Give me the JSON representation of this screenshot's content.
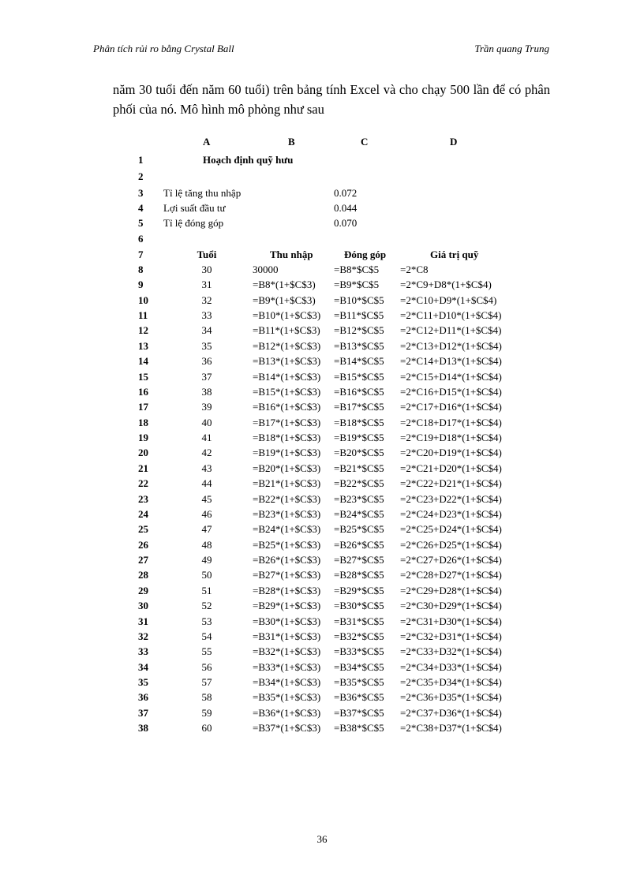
{
  "header": {
    "left": "Phân tích rủi ro bằng Crystal Ball",
    "right": "Trần quang Trung"
  },
  "paragraph": "năm 30 tuổi đến năm 60 tuổi) trên bảng tính Excel và cho chạy 500 lần để có phân phối của nó. Mô hình mô phỏng như sau",
  "sheet": {
    "columns": [
      "A",
      "B",
      "C",
      "D"
    ],
    "title_row": {
      "num": "1",
      "text": "Hoạch định quỹ hưu"
    },
    "blank_rows": [
      "2",
      "6"
    ],
    "params": [
      {
        "num": "3",
        "label": "Tỉ lệ tăng thu nhập",
        "value": "0.072"
      },
      {
        "num": "4",
        "label": "Lợi suất đầu tư",
        "value": "0.044"
      },
      {
        "num": "5",
        "label": "Tỉ lệ đóng góp",
        "value": "0.070"
      }
    ],
    "table_header": {
      "num": "7",
      "cols": [
        "Tuổi",
        "Thu nhập",
        "Đóng góp",
        "Giá trị quỹ"
      ]
    },
    "rows": [
      [
        "8",
        "30",
        "30000",
        "=B8*$C$5",
        "=2*C8"
      ],
      [
        "9",
        "31",
        "=B8*(1+$C$3)",
        "=B9*$C$5",
        "=2*C9+D8*(1+$C$4)"
      ],
      [
        "10",
        "32",
        "=B9*(1+$C$3)",
        "=B10*$C$5",
        "=2*C10+D9*(1+$C$4)"
      ],
      [
        "11",
        "33",
        "=B10*(1+$C$3)",
        "=B11*$C$5",
        "=2*C11+D10*(1+$C$4)"
      ],
      [
        "12",
        "34",
        "=B11*(1+$C$3)",
        "=B12*$C$5",
        "=2*C12+D11*(1+$C$4)"
      ],
      [
        "13",
        "35",
        "=B12*(1+$C$3)",
        "=B13*$C$5",
        "=2*C13+D12*(1+$C$4)"
      ],
      [
        "14",
        "36",
        "=B13*(1+$C$3)",
        "=B14*$C$5",
        "=2*C14+D13*(1+$C$4)"
      ],
      [
        "15",
        "37",
        "=B14*(1+$C$3)",
        "=B15*$C$5",
        "=2*C15+D14*(1+$C$4)"
      ],
      [
        "16",
        "38",
        "=B15*(1+$C$3)",
        "=B16*$C$5",
        "=2*C16+D15*(1+$C$4)"
      ],
      [
        "17",
        "39",
        "=B16*(1+$C$3)",
        "=B17*$C$5",
        "=2*C17+D16*(1+$C$4)"
      ],
      [
        "18",
        "40",
        "=B17*(1+$C$3)",
        "=B18*$C$5",
        "=2*C18+D17*(1+$C$4)"
      ],
      [
        "19",
        "41",
        "=B18*(1+$C$3)",
        "=B19*$C$5",
        "=2*C19+D18*(1+$C$4)"
      ],
      [
        "20",
        "42",
        "=B19*(1+$C$3)",
        "=B20*$C$5",
        "=2*C20+D19*(1+$C$4)"
      ],
      [
        "21",
        "43",
        "=B20*(1+$C$3)",
        "=B21*$C$5",
        "=2*C21+D20*(1+$C$4)"
      ],
      [
        "22",
        "44",
        "=B21*(1+$C$3)",
        "=B22*$C$5",
        "=2*C22+D21*(1+$C$4)"
      ],
      [
        "23",
        "45",
        "=B22*(1+$C$3)",
        "=B23*$C$5",
        "=2*C23+D22*(1+$C$4)"
      ],
      [
        "24",
        "46",
        "=B23*(1+$C$3)",
        "=B24*$C$5",
        "=2*C24+D23*(1+$C$4)"
      ],
      [
        "25",
        "47",
        "=B24*(1+$C$3)",
        "=B25*$C$5",
        "=2*C25+D24*(1+$C$4)"
      ],
      [
        "26",
        "48",
        "=B25*(1+$C$3)",
        "=B26*$C$5",
        "=2*C26+D25*(1+$C$4)"
      ],
      [
        "27",
        "49",
        "=B26*(1+$C$3)",
        "=B27*$C$5",
        "=2*C27+D26*(1+$C$4)"
      ],
      [
        "28",
        "50",
        "=B27*(1+$C$3)",
        "=B28*$C$5",
        "=2*C28+D27*(1+$C$4)"
      ],
      [
        "29",
        "51",
        "=B28*(1+$C$3)",
        "=B29*$C$5",
        "=2*C29+D28*(1+$C$4)"
      ],
      [
        "30",
        "52",
        "=B29*(1+$C$3)",
        "=B30*$C$5",
        "=2*C30+D29*(1+$C$4)"
      ],
      [
        "31",
        "53",
        "=B30*(1+$C$3)",
        "=B31*$C$5",
        "=2*C31+D30*(1+$C$4)"
      ],
      [
        "32",
        "54",
        "=B31*(1+$C$3)",
        "=B32*$C$5",
        "=2*C32+D31*(1+$C$4)"
      ],
      [
        "33",
        "55",
        "=B32*(1+$C$3)",
        "=B33*$C$5",
        "=2*C33+D32*(1+$C$4)"
      ],
      [
        "34",
        "56",
        "=B33*(1+$C$3)",
        "=B34*$C$5",
        "=2*C34+D33*(1+$C$4)"
      ],
      [
        "35",
        "57",
        "=B34*(1+$C$3)",
        "=B35*$C$5",
        "=2*C35+D34*(1+$C$4)"
      ],
      [
        "36",
        "58",
        "=B35*(1+$C$3)",
        "=B36*$C$5",
        "=2*C36+D35*(1+$C$4)"
      ],
      [
        "37",
        "59",
        "=B36*(1+$C$3)",
        "=B37*$C$5",
        "=2*C37+D36*(1+$C$4)"
      ],
      [
        "38",
        "60",
        "=B37*(1+$C$3)",
        "=B38*$C$5",
        "=2*C38+D37*(1+$C$4)"
      ]
    ]
  },
  "page_number": "36"
}
